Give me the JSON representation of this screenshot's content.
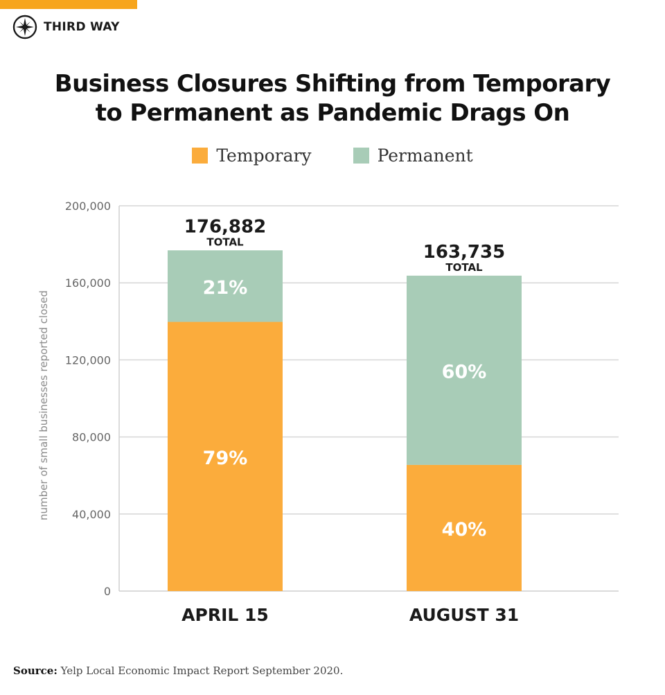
{
  "brand": {
    "name": "THIRD WAY",
    "accent_color": "#f7a51c",
    "logo_icon": "compass-rose-icon"
  },
  "title": {
    "line1": "Business Closures Shifting from Temporary",
    "line2": "to Permanent as Pandemic Drags On"
  },
  "legend": [
    {
      "label": "Temporary",
      "color": "#fbac3c"
    },
    {
      "label": "Permanent",
      "color": "#a8ccb7"
    }
  ],
  "chart_data": {
    "type": "bar",
    "stacked": true,
    "title": "Business Closures Shifting from Temporary to Permanent as Pandemic Drags On",
    "xlabel": "",
    "ylabel": "number of small businesses reported closed",
    "ylim": [
      0,
      200000
    ],
    "yticks": [
      0,
      40000,
      80000,
      120000,
      160000,
      200000
    ],
    "ytick_labels": [
      "0",
      "40,000",
      "80,000",
      "120,000",
      "160,000",
      "200,000"
    ],
    "grid": true,
    "categories": [
      "APRIL 15",
      "AUGUST 31"
    ],
    "totals": [
      176882,
      163735
    ],
    "total_labels": [
      "176,882",
      "163,735"
    ],
    "total_suffix": "TOTAL",
    "series": [
      {
        "name": "Temporary",
        "color": "#fbac3c",
        "values": [
          139737,
          65494
        ],
        "labels": [
          "79%",
          "40%"
        ]
      },
      {
        "name": "Permanent",
        "color": "#a8ccb7",
        "values": [
          37145,
          98241
        ],
        "labels": [
          "21%",
          "60%"
        ]
      }
    ]
  },
  "source": {
    "label": "Source:",
    "text": "Yelp Local Economic Impact Report September 2020."
  }
}
